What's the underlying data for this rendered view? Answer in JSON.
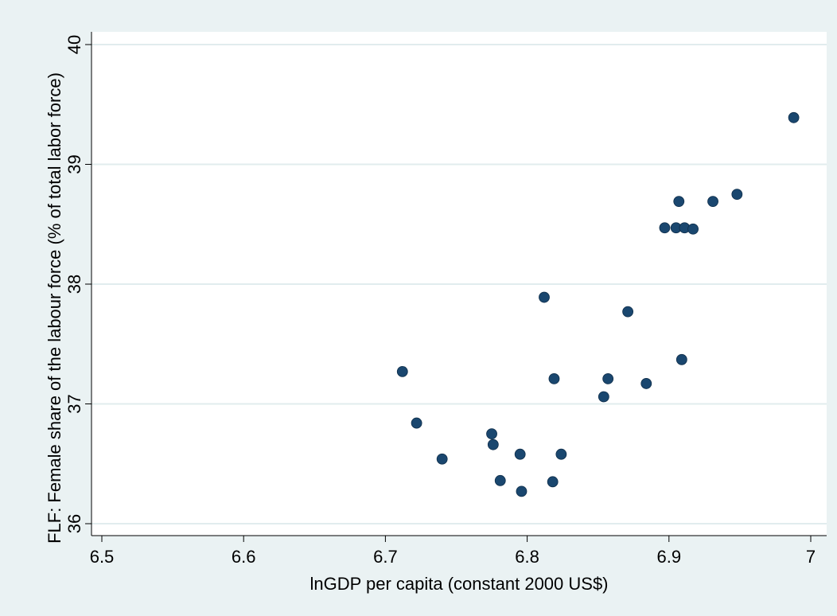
{
  "chart_data": {
    "type": "scatter",
    "xlabel": "lnGDP per capita (constant 2000 US$)",
    "ylabel": "FLF: Female share of the labour force (% of total labor force)",
    "xlim": [
      6.5,
      7.0
    ],
    "ylim": [
      36,
      40
    ],
    "xticks": [
      6.5,
      6.6,
      6.7,
      6.8,
      6.9,
      7.0
    ],
    "xtick_labels": [
      "6.5",
      "6.6",
      "6.7",
      "6.8",
      "6.9",
      "7"
    ],
    "yticks": [
      36,
      37,
      38,
      39,
      40
    ],
    "ytick_labels": [
      "36",
      "37",
      "38",
      "39",
      "40"
    ],
    "grid": "horizontal",
    "marker_color": "#1a476f",
    "points": [
      {
        "x": 6.712,
        "y": 37.27
      },
      {
        "x": 6.722,
        "y": 36.84
      },
      {
        "x": 6.74,
        "y": 36.54
      },
      {
        "x": 6.775,
        "y": 36.75
      },
      {
        "x": 6.776,
        "y": 36.66
      },
      {
        "x": 6.781,
        "y": 36.36
      },
      {
        "x": 6.795,
        "y": 36.58
      },
      {
        "x": 6.796,
        "y": 36.27
      },
      {
        "x": 6.812,
        "y": 37.89
      },
      {
        "x": 6.818,
        "y": 36.35
      },
      {
        "x": 6.819,
        "y": 37.21
      },
      {
        "x": 6.824,
        "y": 36.58
      },
      {
        "x": 6.854,
        "y": 37.06
      },
      {
        "x": 6.857,
        "y": 37.21
      },
      {
        "x": 6.871,
        "y": 37.77
      },
      {
        "x": 6.884,
        "y": 37.17
      },
      {
        "x": 6.897,
        "y": 38.47
      },
      {
        "x": 6.905,
        "y": 38.47
      },
      {
        "x": 6.907,
        "y": 38.69
      },
      {
        "x": 6.909,
        "y": 37.37
      },
      {
        "x": 6.911,
        "y": 38.47
      },
      {
        "x": 6.917,
        "y": 38.46
      },
      {
        "x": 6.931,
        "y": 38.69
      },
      {
        "x": 6.948,
        "y": 38.75
      },
      {
        "x": 6.988,
        "y": 39.39
      }
    ]
  }
}
